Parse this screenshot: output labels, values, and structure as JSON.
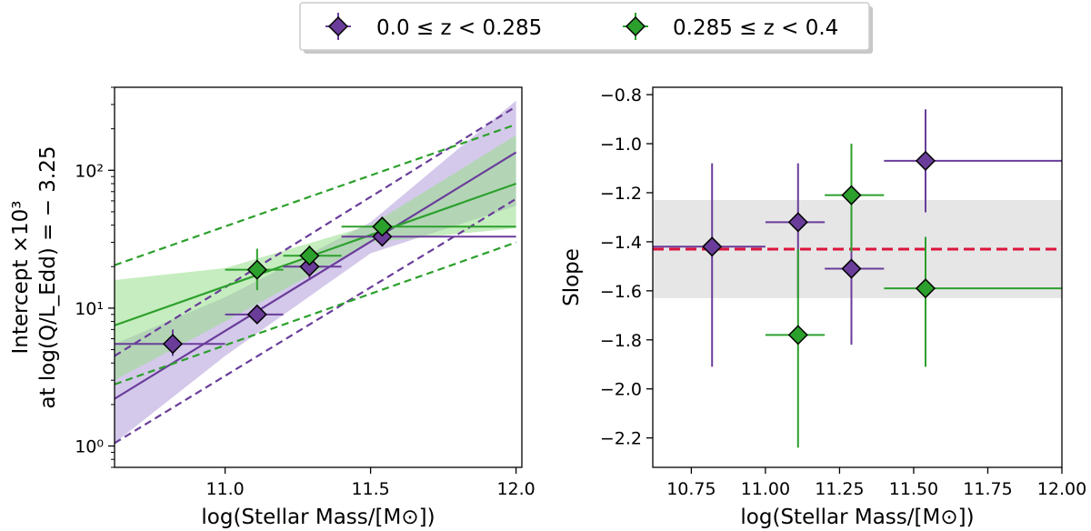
{
  "colors": {
    "purple": "#6a3d9a",
    "purple_fill": "#b19cd9",
    "green": "#2ca02c",
    "green_fill": "#98df8a",
    "overlap_fill": "#7f9a7f",
    "slope_band": "#e6e6e6",
    "slope_line": "#dc143c"
  },
  "legend": {
    "items": [
      {
        "label": "0.0 ≤ z < 0.285",
        "color": "#6a3d9a"
      },
      {
        "label": "0.285 ≤ z < 0.4",
        "color": "#2ca02c"
      }
    ]
  },
  "chart_data": [
    {
      "type": "scatter",
      "title": "",
      "xlabel": "log(Stellar Mass/[M⊙])",
      "ylabel_line1": "Intercept ×10³",
      "ylabel_line2": "at log(Q/L_Edd) = − 3.25",
      "xlim": [
        10.62,
        12.02
      ],
      "ylim_log": [
        0.7,
        400
      ],
      "yscale": "log",
      "x_ticks": [
        11.0,
        11.5,
        12.0
      ],
      "x_tick_labels": [
        "11.0",
        "11.5",
        "12.0"
      ],
      "y_ticks": [
        1,
        10,
        100
      ],
      "y_tick_labels": [
        "10⁰",
        "10¹",
        "10²"
      ],
      "series": [
        {
          "name": "0.0 ≤ z < 0.285",
          "color_key": "purple",
          "points": [
            {
              "x": 10.82,
              "y": 5.5,
              "xlo": 10.62,
              "xhi": 11.0,
              "ylo": 4.5,
              "yhi": 7.0
            },
            {
              "x": 11.11,
              "y": 9.0,
              "xlo": 11.0,
              "xhi": 11.2,
              "ylo": 7.8,
              "yhi": 10.5
            },
            {
              "x": 11.29,
              "y": 20.0,
              "xlo": 11.2,
              "xhi": 11.4,
              "ylo": 16.5,
              "yhi": 24.0
            },
            {
              "x": 11.54,
              "y": 33.0,
              "xlo": 11.4,
              "xhi": 12.0,
              "ylo": 28.0,
              "yhi": 39.0
            }
          ],
          "fit": {
            "x": [
              10.62,
              12.0
            ],
            "y": [
              2.2,
              135
            ]
          },
          "upper_dashed": {
            "x": [
              10.62,
              12.0
            ],
            "y": [
              4.5,
              290
            ]
          },
          "lower_dashed": {
            "x": [
              10.62,
              12.0
            ],
            "y": [
              1.05,
              62
            ]
          },
          "band_upper": {
            "x": [
              10.62,
              11.0,
              11.5,
              12.0
            ],
            "y": [
              5.5,
              12,
              42,
              320
            ]
          },
          "band_lower": {
            "x": [
              10.62,
              11.0,
              11.5,
              12.0
            ],
            "y": [
              1.05,
              4.5,
              25,
              55
            ]
          }
        },
        {
          "name": "0.285 ≤ z < 0.4",
          "color_key": "green",
          "points": [
            {
              "x": 11.11,
              "y": 19.0,
              "xlo": 11.0,
              "xhi": 11.2,
              "ylo": 13.5,
              "yhi": 27.0
            },
            {
              "x": 11.29,
              "y": 24.0,
              "xlo": 11.2,
              "xhi": 11.4,
              "ylo": 20.0,
              "yhi": 28.5
            },
            {
              "x": 11.54,
              "y": 39.0,
              "xlo": 11.4,
              "xhi": 12.0,
              "ylo": 33.0,
              "yhi": 46.0
            }
          ],
          "fit": {
            "x": [
              10.62,
              12.0
            ],
            "y": [
              7.5,
              80
            ]
          },
          "upper_dashed": {
            "x": [
              10.62,
              12.0
            ],
            "y": [
              20.5,
              215
            ]
          },
          "lower_dashed": {
            "x": [
              10.62,
              12.0
            ],
            "y": [
              2.8,
              30
            ]
          },
          "band_upper": {
            "x": [
              10.62,
              11.0,
              11.5,
              12.0
            ],
            "y": [
              16,
              19.5,
              40,
              180
            ]
          },
          "band_lower": {
            "x": [
              10.62,
              11.0,
              11.5,
              12.0
            ],
            "y": [
              3.0,
              8.0,
              30,
              38
            ]
          }
        }
      ]
    },
    {
      "type": "scatter",
      "title": "",
      "xlabel": "log(Stellar Mass/[M⊙])",
      "ylabel": "Slope",
      "xlim": [
        10.62,
        12.0
      ],
      "ylim": [
        -2.32,
        -0.77
      ],
      "x_ticks": [
        10.75,
        11.0,
        11.25,
        11.5,
        11.75,
        12.0
      ],
      "x_tick_labels": [
        "10.75",
        "11.00",
        "11.25",
        "11.50",
        "11.75",
        "12.00"
      ],
      "y_ticks": [
        -2.2,
        -2.0,
        -1.8,
        -1.6,
        -1.4,
        -1.2,
        -1.0,
        -0.8
      ],
      "y_tick_labels": [
        "−2.2",
        "−2.0",
        "−1.8",
        "−1.6",
        "−1.4",
        "−1.2",
        "−1.0",
        "−0.8"
      ],
      "reference_line": -1.43,
      "reference_band": [
        -1.63,
        -1.23
      ],
      "series": [
        {
          "name": "0.0 ≤ z < 0.285",
          "color_key": "purple",
          "points": [
            {
              "x": 10.82,
              "y": -1.42,
              "xlo": 10.62,
              "xhi": 11.0,
              "ylo": -1.91,
              "yhi": -1.08
            },
            {
              "x": 11.11,
              "y": -1.32,
              "xlo": 11.0,
              "xhi": 11.2,
              "ylo": -1.63,
              "yhi": -1.08
            },
            {
              "x": 11.29,
              "y": -1.51,
              "xlo": 11.2,
              "xhi": 11.4,
              "ylo": -1.82,
              "yhi": -1.27
            },
            {
              "x": 11.54,
              "y": -1.07,
              "xlo": 11.4,
              "xhi": 12.0,
              "ylo": -1.28,
              "yhi": -0.86
            }
          ]
        },
        {
          "name": "0.285 ≤ z < 0.4",
          "color_key": "green",
          "points": [
            {
              "x": 11.11,
              "y": -1.78,
              "xlo": 11.0,
              "xhi": 11.2,
              "ylo": -2.24,
              "yhi": -1.43
            },
            {
              "x": 11.29,
              "y": -1.21,
              "xlo": 11.2,
              "xhi": 11.4,
              "ylo": -1.44,
              "yhi": -1.0
            },
            {
              "x": 11.54,
              "y": -1.59,
              "xlo": 11.4,
              "xhi": 12.0,
              "ylo": -1.91,
              "yhi": -1.38
            }
          ]
        }
      ]
    }
  ]
}
